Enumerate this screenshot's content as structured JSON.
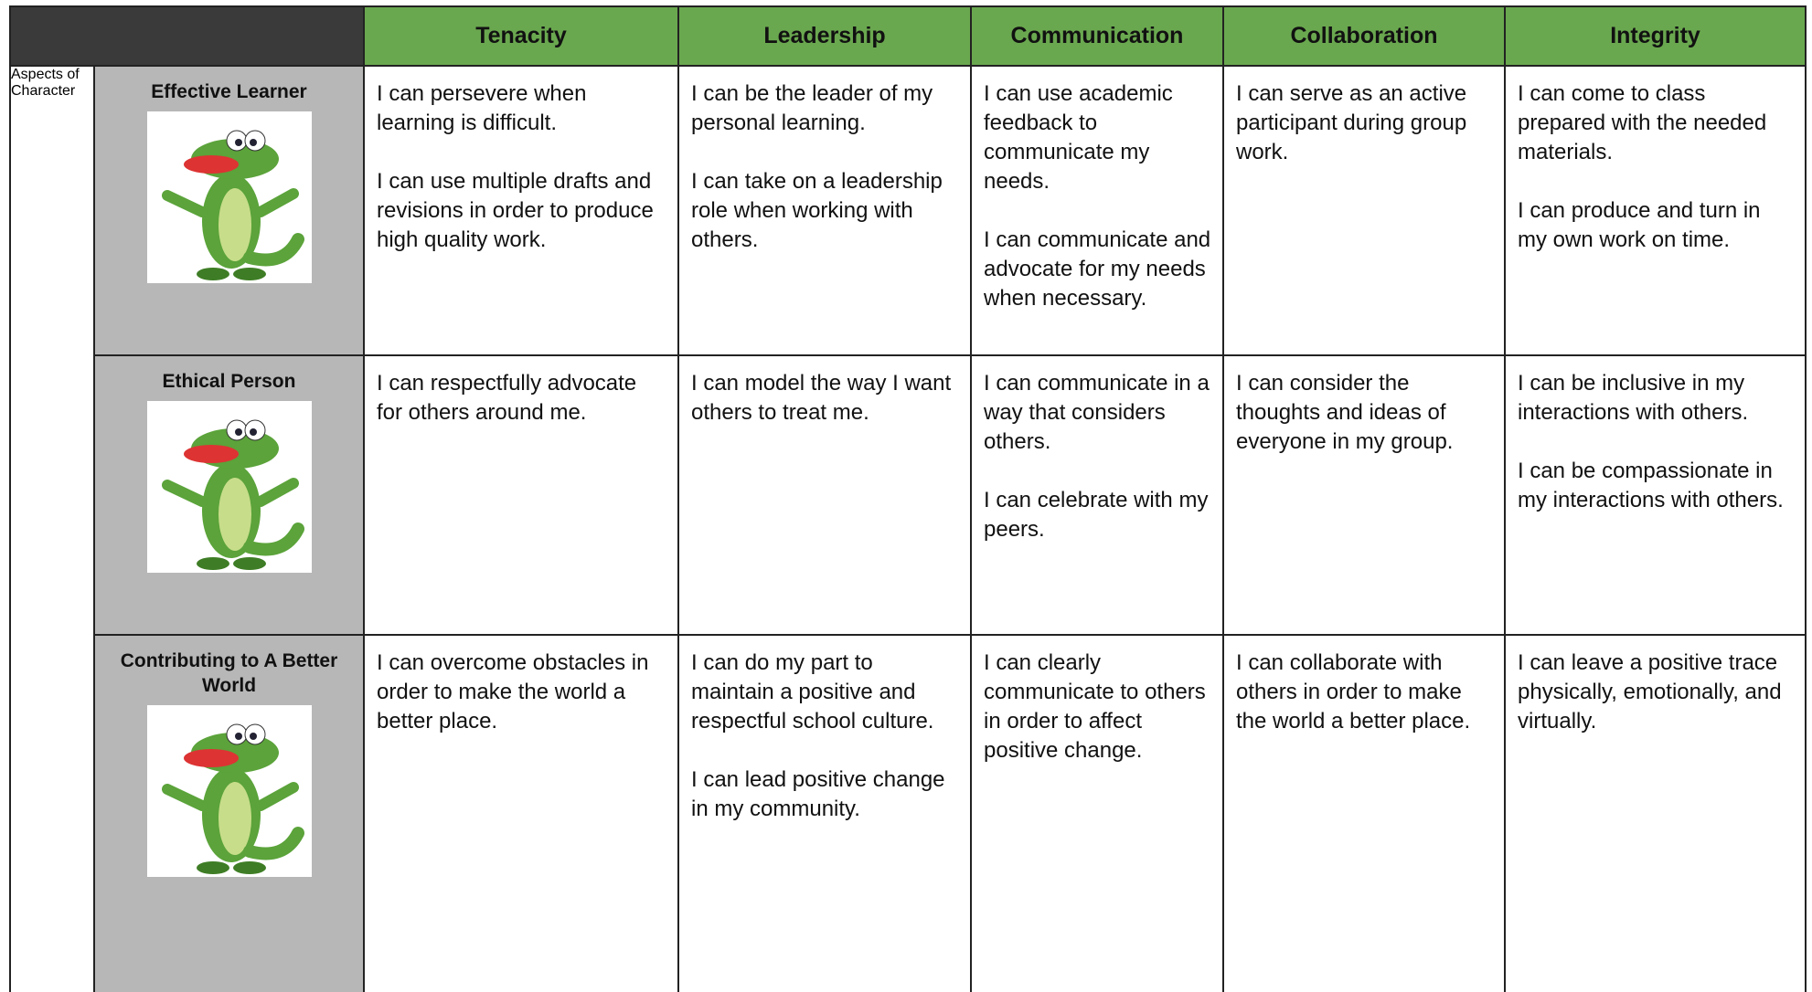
{
  "header": {
    "columns": [
      "Tenacity",
      "Leadership",
      "Communication",
      "Collaboration",
      "Integrity"
    ]
  },
  "side_label": "Aspects of Character",
  "rows": [
    {
      "label": "Effective Learner",
      "cells": [
        [
          "I can persevere when learning is difficult.",
          "I can use multiple drafts and revisions in order to produce high quality work."
        ],
        [
          "I can be the leader of my personal learning.",
          "I can take on a leadership role when working with others."
        ],
        [
          "I can use academic feedback to communicate my needs.",
          "I can communicate and advocate for my needs when necessary."
        ],
        [
          "I can serve as an active participant during group work."
        ],
        [
          "I can come to class prepared with the needed materials.",
          "I can produce and turn in my own work on time."
        ]
      ]
    },
    {
      "label": "Ethical Person",
      "cells": [
        [
          "I can respectfully advocate for others around me."
        ],
        [
          "I can model the way I want others to treat me."
        ],
        [
          "I can communicate in a way that considers others.",
          "I can celebrate with my peers."
        ],
        [
          "I can consider the thoughts and ideas of everyone in my group."
        ],
        [
          "I can be inclusive in my interactions with others.",
          "I can be compassionate in my interactions with others."
        ]
      ]
    },
    {
      "label": "Contributing to A Better World",
      "cells": [
        [
          "I can overcome obstacles in order to make the world a better place."
        ],
        [
          "I can do my part to maintain a positive and respectful school culture.",
          "I can lead positive change in my community."
        ],
        [
          "I can clearly communicate to others in order to affect positive change."
        ],
        [
          "I can collaborate with others in order to make the world a better place."
        ],
        [
          "I can leave a positive trace physically, emotionally, and virtually."
        ]
      ]
    }
  ]
}
